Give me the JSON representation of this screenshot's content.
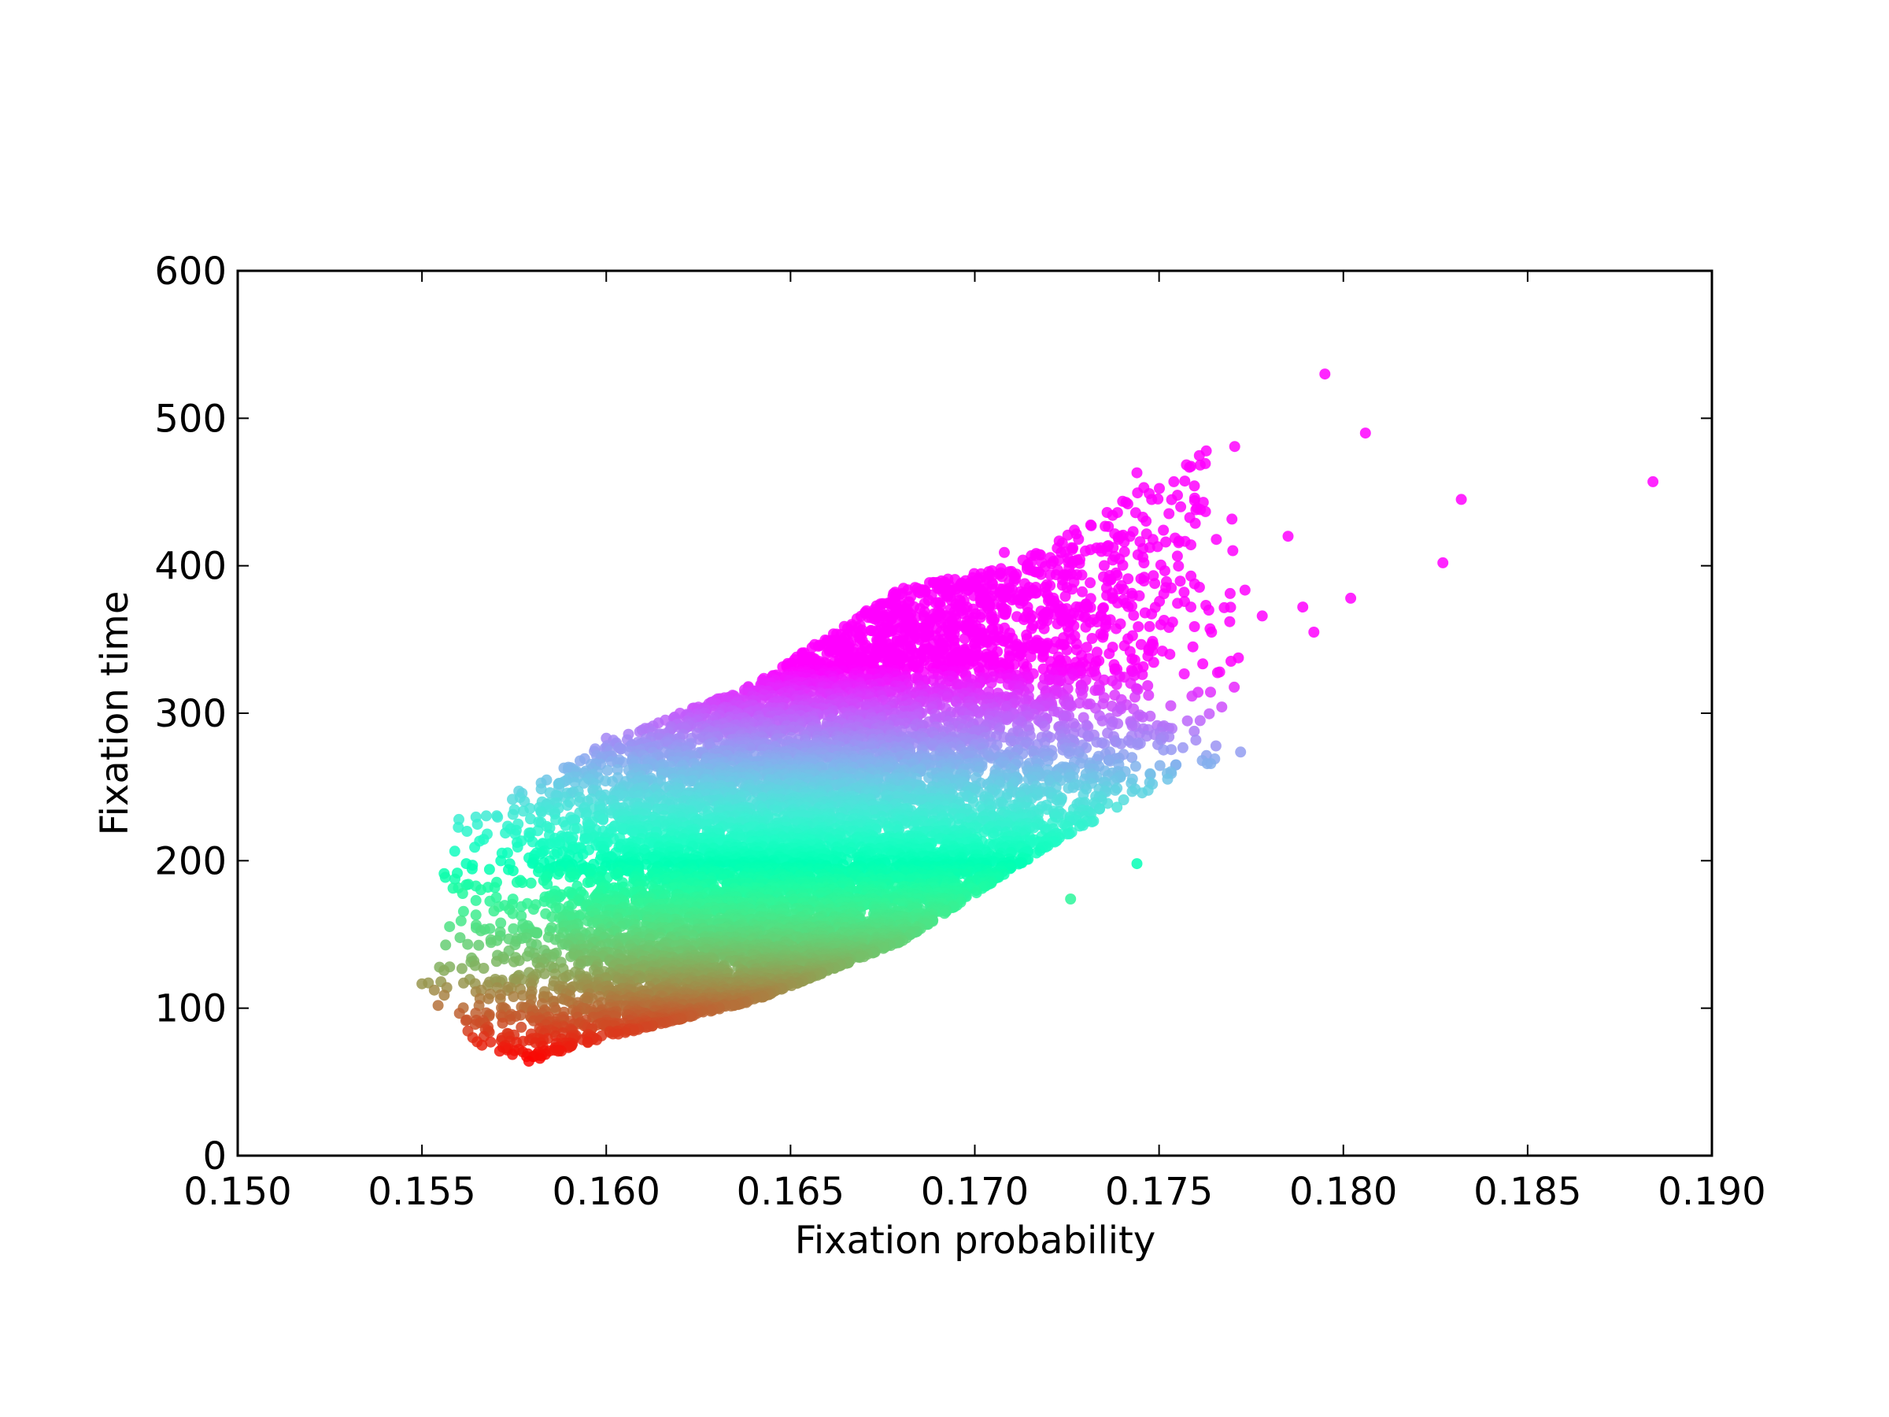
{
  "chart_data": {
    "type": "scatter",
    "title": "",
    "xlabel": "Fixation probability",
    "ylabel": "Fixation time",
    "xlim": [
      0.15,
      0.19
    ],
    "ylim": [
      0,
      600
    ],
    "xticks": [
      "0.150",
      "0.155",
      "0.160",
      "0.165",
      "0.170",
      "0.175",
      "0.180",
      "0.185",
      "0.190"
    ],
    "yticks": [
      "0",
      "100",
      "200",
      "300",
      "400",
      "500",
      "600"
    ],
    "grid": false,
    "legend": "none",
    "colormap": "rainbow",
    "color_encoding": "color varies smoothly from red (lowest fixation time) through yellow-green and cyan to purple (highest fixation time)",
    "approx_point_count": 10000,
    "cluster_summary": {
      "x_range": [
        0.1547,
        0.1885
      ],
      "y_range": [
        63,
        530
      ],
      "lower_edge": [
        [
          0.1547,
          120
        ],
        [
          0.156,
          78
        ],
        [
          0.158,
          65
        ],
        [
          0.16,
          80
        ],
        [
          0.164,
          105
        ],
        [
          0.168,
          145
        ],
        [
          0.172,
          210
        ],
        [
          0.176,
          265
        ]
      ],
      "upper_edge": [
        [
          0.1547,
          130
        ],
        [
          0.156,
          225
        ],
        [
          0.16,
          280
        ],
        [
          0.164,
          320
        ],
        [
          0.168,
          385
        ],
        [
          0.171,
          400
        ],
        [
          0.175,
          460
        ],
        [
          0.1795,
          530
        ]
      ]
    },
    "notable_points": [
      {
        "x": 0.1795,
        "y": 530
      },
      {
        "x": 0.1806,
        "y": 490
      },
      {
        "x": 0.1884,
        "y": 457
      },
      {
        "x": 0.1832,
        "y": 445
      },
      {
        "x": 0.1827,
        "y": 402
      },
      {
        "x": 0.1802,
        "y": 378
      },
      {
        "x": 0.1744,
        "y": 463
      },
      {
        "x": 0.1754,
        "y": 457
      },
      {
        "x": 0.1762,
        "y": 443
      },
      {
        "x": 0.176,
        "y": 438
      },
      {
        "x": 0.1741,
        "y": 443
      },
      {
        "x": 0.1785,
        "y": 420
      },
      {
        "x": 0.1792,
        "y": 355
      },
      {
        "x": 0.1789,
        "y": 372
      },
      {
        "x": 0.1778,
        "y": 366
      },
      {
        "x": 0.173,
        "y": 410
      },
      {
        "x": 0.1708,
        "y": 409
      },
      {
        "x": 0.1744,
        "y": 198
      },
      {
        "x": 0.1726,
        "y": 174
      },
      {
        "x": 0.16,
        "y": 283
      },
      {
        "x": 0.162,
        "y": 300
      },
      {
        "x": 0.156,
        "y": 228
      },
      {
        "x": 0.1579,
        "y": 64
      },
      {
        "x": 0.1582,
        "y": 66
      }
    ]
  }
}
